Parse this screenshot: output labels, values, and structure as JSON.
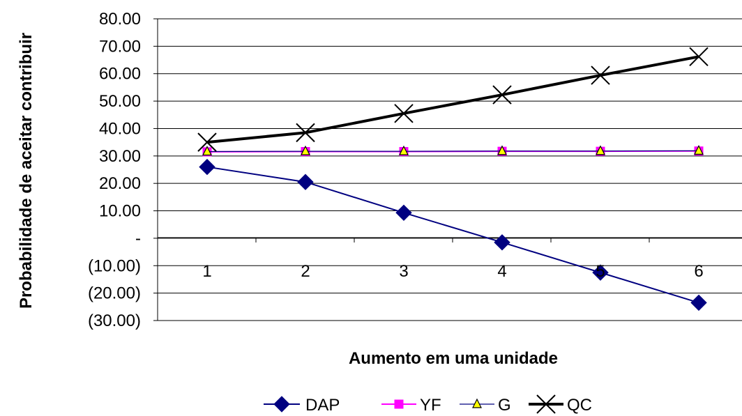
{
  "chart_data": {
    "type": "line",
    "xlabel": "Aumento em uma unidade",
    "ylabel": "Probabilidade de aceitar contribuir",
    "ylim": [
      -30,
      80
    ],
    "y_ticks": [
      80,
      70,
      60,
      50,
      40,
      30,
      20,
      10,
      0,
      -10,
      -20,
      -30
    ],
    "y_tick_labels": [
      "80.00",
      "70.00",
      "60.00",
      "50.00",
      "40.00",
      "30.00",
      "20.00",
      "10.00",
      "-",
      "(10.00)",
      "(20.00)",
      "(30.00)"
    ],
    "categories": [
      "1",
      "2",
      "3",
      "4",
      "5",
      "6"
    ],
    "grid": "horizontal",
    "legend_position": "bottom",
    "series": [
      {
        "name": "DAP",
        "values": [
          26.0,
          20.5,
          9.3,
          -1.5,
          -12.5,
          -23.5
        ],
        "color": "#000080",
        "marker": "diamond"
      },
      {
        "name": "YF",
        "values": [
          31.5,
          31.6,
          31.6,
          31.7,
          31.7,
          31.8
        ],
        "color": "#FF00FF",
        "marker": "square"
      },
      {
        "name": "G",
        "values": [
          31.6,
          31.7,
          31.7,
          31.8,
          31.8,
          31.9
        ],
        "color": "#000080",
        "marker": "triangle",
        "marker_fill": "#FFFF00"
      },
      {
        "name": "QC",
        "values": [
          35.0,
          38.5,
          45.5,
          52.3,
          59.4,
          66.2
        ],
        "color": "#000000",
        "marker": "x"
      }
    ]
  }
}
